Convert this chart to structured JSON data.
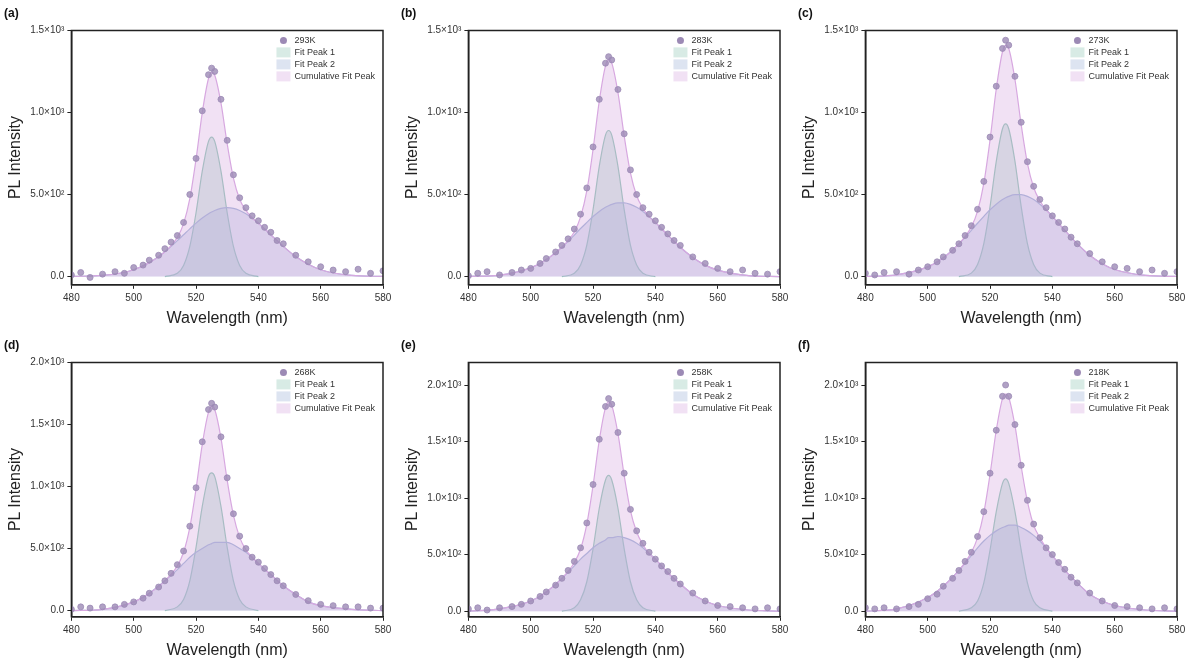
{
  "chart_data": [
    {
      "type": "area",
      "title": "(a)",
      "xlabel": "Wavelength (nm)",
      "ylabel": "PL Intensity",
      "xlim": [
        480,
        580
      ],
      "xticks": [
        480,
        500,
        520,
        540,
        560,
        580
      ],
      "ylim": [
        -50,
        1500
      ],
      "yticks": [
        {
          "value": 0,
          "label": "0.0"
        },
        {
          "value": 500,
          "label": "5.0×10²"
        },
        {
          "value": 1000,
          "label": "1.0×10³"
        },
        {
          "value": 1500,
          "label": "1.5×10³"
        }
      ],
      "legend": "top right",
      "series": [
        {
          "name": "293K",
          "type": "scatter",
          "marker": "circle",
          "color": "#9c8ab5",
          "x": [
            480,
            483,
            486,
            490,
            494,
            497,
            500,
            503,
            505,
            508,
            510,
            512,
            514,
            516,
            518,
            520,
            522,
            524,
            525,
            526,
            528,
            530,
            532,
            534,
            536,
            538,
            540,
            542,
            544,
            546,
            548,
            552,
            556,
            560,
            564,
            568,
            572,
            576,
            580
          ],
          "values": [
            10,
            25,
            -5,
            15,
            30,
            20,
            55,
            70,
            100,
            130,
            170,
            210,
            250,
            330,
            500,
            720,
            1010,
            1230,
            1270,
            1250,
            1080,
            830,
            620,
            480,
            420,
            370,
            340,
            300,
            270,
            220,
            200,
            130,
            90,
            60,
            40,
            30,
            45,
            20,
            35
          ]
        },
        {
          "name": "Fit Peak 1",
          "color": "#8fc7b4",
          "x": [
            510,
            514,
            516,
            518,
            520,
            522,
            524,
            525,
            526,
            528,
            530,
            532,
            534,
            536,
            540
          ],
          "values": [
            0,
            20,
            68,
            184,
            389,
            642,
            824,
            850,
            824,
            642,
            389,
            184,
            68,
            20,
            0
          ]
        },
        {
          "name": "Fit Peak 2",
          "color": "#9fb3d6",
          "x": [
            480,
            490,
            500,
            505,
            510,
            514,
            516,
            518,
            520,
            522,
            524,
            525,
            526,
            528,
            530,
            532,
            534,
            536,
            538,
            540,
            544,
            548,
            552,
            556,
            560,
            570,
            580
          ],
          "values": [
            1,
            7,
            42,
            85,
            151,
            219,
            255,
            291,
            326,
            357,
            383,
            394,
            403,
            416,
            420,
            416,
            403,
            383,
            357,
            326,
            255,
            184,
            122,
            75,
            42,
            7,
            1
          ]
        },
        {
          "name": "Cumulative Fit Peak",
          "color": "#d7a8e0",
          "x": [
            480,
            490,
            500,
            505,
            510,
            514,
            516,
            518,
            520,
            522,
            524,
            525,
            526,
            528,
            530,
            532,
            534,
            536,
            538,
            540,
            544,
            548,
            552,
            556,
            560,
            570,
            580
          ],
          "values": [
            1,
            7,
            42,
            85,
            151,
            239,
            323,
            475,
            715,
            999,
            1207,
            1244,
            1227,
            1058,
            809,
            600,
            471,
            403,
            357,
            326,
            255,
            184,
            122,
            75,
            42,
            7,
            1
          ]
        }
      ]
    },
    {
      "type": "area",
      "title": "(b)",
      "xlabel": "Wavelength (nm)",
      "ylabel": "PL Intensity",
      "xlim": [
        480,
        580
      ],
      "xticks": [
        480,
        500,
        520,
        540,
        560,
        580
      ],
      "ylim": [
        -50,
        1500
      ],
      "yticks": [
        {
          "value": 0,
          "label": "0.0"
        },
        {
          "value": 500,
          "label": "5.0×10²"
        },
        {
          "value": 1000,
          "label": "1.0×10³"
        },
        {
          "value": 1500,
          "label": "1.5×10³"
        }
      ],
      "legend": "top right",
      "series": [
        {
          "name": "283K",
          "type": "scatter",
          "marker": "circle",
          "color": "#9c8ab5",
          "x": [
            480,
            483,
            486,
            490,
            494,
            497,
            500,
            503,
            505,
            508,
            510,
            512,
            514,
            516,
            518,
            520,
            522,
            524,
            525,
            526,
            528,
            530,
            532,
            534,
            536,
            538,
            540,
            542,
            544,
            546,
            548,
            552,
            556,
            560,
            564,
            568,
            572,
            576,
            580
          ],
          "values": [
            5,
            20,
            30,
            10,
            25,
            40,
            50,
            80,
            110,
            150,
            190,
            230,
            290,
            380,
            540,
            790,
            1080,
            1300,
            1340,
            1320,
            1140,
            870,
            650,
            500,
            420,
            380,
            340,
            300,
            260,
            220,
            190,
            120,
            80,
            50,
            30,
            40,
            20,
            15,
            30
          ]
        },
        {
          "name": "Fit Peak 1",
          "color": "#8fc7b4",
          "x": [
            510,
            514,
            516,
            518,
            520,
            522,
            524,
            525,
            526,
            528,
            530,
            532,
            534,
            536,
            540
          ],
          "values": [
            0,
            20,
            71,
            192,
            408,
            672,
            862,
            890,
            862,
            672,
            408,
            192,
            71,
            20,
            0
          ]
        },
        {
          "name": "Fit Peak 2",
          "color": "#9fb3d6",
          "x": [
            480,
            490,
            500,
            505,
            510,
            514,
            516,
            518,
            520,
            522,
            524,
            525,
            526,
            528,
            530,
            532,
            534,
            536,
            538,
            540,
            544,
            548,
            552,
            556,
            560,
            570,
            580
          ],
          "values": [
            1,
            9,
            53,
            104,
            179,
            253,
            293,
            330,
            366,
            397,
            422,
            432,
            440,
            449,
            449,
            440,
            422,
            397,
            366,
            330,
            253,
            179,
            117,
            70,
            39,
            6,
            0
          ]
        },
        {
          "name": "Cumulative Fit Peak",
          "color": "#d7a8e0",
          "x": [
            480,
            490,
            500,
            505,
            510,
            514,
            516,
            518,
            520,
            522,
            524,
            525,
            526,
            528,
            530,
            532,
            534,
            536,
            538,
            540,
            544,
            548,
            552,
            556,
            560,
            570,
            580
          ],
          "values": [
            1,
            9,
            53,
            104,
            179,
            273,
            364,
            522,
            774,
            1069,
            1284,
            1322,
            1302,
            1121,
            857,
            632,
            493,
            417,
            366,
            330,
            253,
            179,
            117,
            70,
            39,
            6,
            0
          ]
        }
      ]
    },
    {
      "type": "area",
      "title": "(c)",
      "xlabel": "Wavelength (nm)",
      "ylabel": "PL Intensity",
      "xlim": [
        480,
        580
      ],
      "xticks": [
        480,
        500,
        520,
        540,
        560,
        580
      ],
      "ylim": [
        -50,
        1500
      ],
      "yticks": [
        {
          "value": 0,
          "label": "0.0"
        },
        {
          "value": 500,
          "label": "5.0×10²"
        },
        {
          "value": 1000,
          "label": "1.0×10³"
        },
        {
          "value": 1500,
          "label": "1.5×10³"
        }
      ],
      "legend": "top right",
      "series": [
        {
          "name": "273K",
          "type": "scatter",
          "marker": "circle",
          "color": "#9c8ab5",
          "x": [
            480,
            483,
            486,
            490,
            494,
            497,
            500,
            503,
            505,
            508,
            510,
            512,
            514,
            516,
            518,
            520,
            522,
            524,
            525,
            526,
            528,
            530,
            532,
            534,
            536,
            538,
            540,
            542,
            544,
            546,
            548,
            552,
            556,
            560,
            564,
            568,
            572,
            576,
            580
          ],
          "values": [
            20,
            10,
            25,
            30,
            15,
            40,
            60,
            90,
            120,
            160,
            200,
            250,
            310,
            410,
            580,
            850,
            1160,
            1390,
            1440,
            1410,
            1220,
            940,
            700,
            550,
            470,
            420,
            370,
            330,
            290,
            240,
            200,
            140,
            90,
            60,
            50,
            30,
            40,
            20,
            30
          ]
        },
        {
          "name": "Fit Peak 1",
          "color": "#8fc7b4",
          "x": [
            510,
            514,
            516,
            518,
            520,
            522,
            524,
            525,
            526,
            528,
            530,
            532,
            534,
            536,
            540
          ],
          "values": [
            0,
            21,
            74,
            201,
            426,
            702,
            901,
            930,
            901,
            702,
            426,
            201,
            74,
            21,
            0
          ]
        },
        {
          "name": "Fit Peak 2",
          "color": "#9fb3d6",
          "x": [
            480,
            490,
            500,
            505,
            510,
            514,
            516,
            518,
            520,
            522,
            524,
            525,
            526,
            528,
            530,
            532,
            534,
            536,
            538,
            540,
            544,
            548,
            552,
            556,
            560,
            570,
            580
          ],
          "values": [
            1,
            11,
            59,
            115,
            199,
            282,
            325,
            367,
            407,
            441,
            469,
            480,
            489,
            499,
            499,
            489,
            469,
            441,
            407,
            367,
            282,
            199,
            130,
            78,
            43,
            7,
            1
          ]
        },
        {
          "name": "Cumulative Fit Peak",
          "color": "#d7a8e0",
          "x": [
            480,
            490,
            500,
            505,
            510,
            514,
            516,
            518,
            520,
            522,
            524,
            525,
            526,
            528,
            530,
            532,
            534,
            536,
            538,
            540,
            544,
            548,
            552,
            556,
            560,
            570,
            580
          ],
          "values": [
            1,
            11,
            59,
            115,
            199,
            303,
            399,
            568,
            833,
            1143,
            1370,
            1410,
            1390,
            1201,
            925,
            690,
            543,
            462,
            407,
            367,
            282,
            199,
            130,
            78,
            43,
            7,
            1
          ]
        }
      ]
    },
    {
      "type": "area",
      "title": "(d)",
      "xlabel": "Wavelength (nm)",
      "ylabel": "PL Intensity",
      "xlim": [
        480,
        580
      ],
      "xticks": [
        480,
        500,
        520,
        540,
        560,
        580
      ],
      "ylim": [
        -50,
        2000
      ],
      "yticks": [
        {
          "value": 0,
          "label": "0.0"
        },
        {
          "value": 500,
          "label": "5.0×10²"
        },
        {
          "value": 1000,
          "label": "1.0×10³"
        },
        {
          "value": 1500,
          "label": "1.5×10³"
        },
        {
          "value": 2000,
          "label": "2.0×10³"
        }
      ],
      "legend": "top right",
      "series": [
        {
          "name": "268K",
          "type": "scatter",
          "marker": "circle",
          "color": "#9c8ab5",
          "x": [
            480,
            483,
            486,
            490,
            494,
            497,
            500,
            503,
            505,
            508,
            510,
            512,
            514,
            516,
            518,
            520,
            522,
            524,
            525,
            526,
            528,
            530,
            532,
            534,
            536,
            538,
            540,
            542,
            544,
            546,
            548,
            552,
            556,
            560,
            564,
            568,
            572,
            576,
            580
          ],
          "values": [
            10,
            30,
            20,
            30,
            30,
            50,
            70,
            100,
            140,
            190,
            240,
            300,
            370,
            480,
            680,
            990,
            1360,
            1620,
            1670,
            1640,
            1400,
            1070,
            780,
            600,
            500,
            430,
            390,
            340,
            290,
            240,
            200,
            130,
            80,
            50,
            40,
            30,
            30,
            20,
            20
          ]
        },
        {
          "name": "Fit Peak 1",
          "color": "#8fc7b4",
          "x": [
            510,
            514,
            516,
            518,
            520,
            522,
            524,
            525,
            526,
            528,
            530,
            532,
            534,
            536,
            540
          ],
          "values": [
            0,
            30,
            90,
            240,
            510,
            840,
            1080,
            1110,
            1080,
            840,
            510,
            240,
            90,
            30,
            0
          ]
        },
        {
          "name": "Fit Peak 2",
          "color": "#9fb3d6",
          "x": [
            480,
            490,
            500,
            505,
            510,
            514,
            516,
            518,
            520,
            522,
            524,
            525,
            526,
            528,
            530,
            532,
            534,
            536,
            538,
            540,
            544,
            548,
            552,
            556,
            560,
            570,
            580
          ],
          "values": [
            0,
            10,
            70,
            140,
            240,
            330,
            380,
            430,
            470,
            500,
            530,
            540,
            550,
            550,
            550,
            530,
            500,
            470,
            430,
            380,
            290,
            200,
            130,
            70,
            40,
            10,
            0
          ]
        },
        {
          "name": "Cumulative Fit Peak",
          "color": "#d7a8e0",
          "x": [
            480,
            490,
            500,
            505,
            510,
            514,
            516,
            518,
            520,
            522,
            524,
            525,
            526,
            528,
            530,
            532,
            534,
            536,
            538,
            540,
            544,
            548,
            552,
            556,
            560,
            570,
            580
          ],
          "values": [
            0,
            10,
            70,
            140,
            240,
            360,
            470,
            670,
            980,
            1340,
            1600,
            1650,
            1620,
            1390,
            1050,
            770,
            590,
            490,
            430,
            380,
            290,
            200,
            130,
            70,
            40,
            10,
            0
          ]
        }
      ]
    },
    {
      "type": "area",
      "title": "(e)",
      "xlabel": "Wavelength (nm)",
      "ylabel": "PL Intensity",
      "xlim": [
        480,
        580
      ],
      "xticks": [
        480,
        500,
        520,
        540,
        560,
        580
      ],
      "ylim": [
        -50,
        2200
      ],
      "yticks": [
        {
          "value": 0,
          "label": "0.0"
        },
        {
          "value": 500,
          "label": "5.0×10²"
        },
        {
          "value": 1000,
          "label": "1.0×10³"
        },
        {
          "value": 1500,
          "label": "1.5×10³"
        },
        {
          "value": 2000,
          "label": "2.0×10³"
        }
      ],
      "legend": "top right",
      "series": [
        {
          "name": "258K",
          "type": "scatter",
          "marker": "circle",
          "color": "#9c8ab5",
          "x": [
            480,
            483,
            486,
            490,
            494,
            497,
            500,
            503,
            505,
            508,
            510,
            512,
            514,
            516,
            518,
            520,
            522,
            524,
            525,
            526,
            528,
            530,
            532,
            534,
            536,
            538,
            540,
            542,
            544,
            546,
            548,
            552,
            556,
            560,
            564,
            568,
            572,
            576,
            580
          ],
          "values": [
            20,
            30,
            10,
            30,
            40,
            60,
            90,
            130,
            170,
            230,
            290,
            360,
            440,
            560,
            780,
            1120,
            1520,
            1810,
            1880,
            1830,
            1580,
            1220,
            900,
            710,
            600,
            520,
            460,
            400,
            350,
            290,
            240,
            160,
            90,
            50,
            40,
            30,
            20,
            30,
            20
          ]
        },
        {
          "name": "Fit Peak 1",
          "color": "#8fc7b4",
          "x": [
            510,
            514,
            516,
            518,
            520,
            522,
            524,
            525,
            526,
            528,
            530,
            532,
            534,
            536,
            540
          ],
          "values": [
            0,
            30,
            100,
            260,
            550,
            910,
            1160,
            1200,
            1160,
            910,
            550,
            260,
            100,
            30,
            0
          ]
        },
        {
          "name": "Fit Peak 2",
          "color": "#9fb3d6",
          "x": [
            480,
            490,
            500,
            505,
            510,
            514,
            516,
            518,
            520,
            522,
            524,
            525,
            526,
            528,
            530,
            532,
            534,
            536,
            538,
            540,
            544,
            548,
            552,
            556,
            560,
            570,
            580
          ],
          "values": [
            0,
            20,
            90,
            170,
            290,
            400,
            460,
            510,
            560,
            600,
            630,
            650,
            650,
            660,
            650,
            630,
            600,
            560,
            510,
            460,
            340,
            240,
            150,
            90,
            50,
            10,
            0
          ]
        },
        {
          "name": "Cumulative Fit Peak",
          "color": "#d7a8e0",
          "x": [
            480,
            490,
            500,
            505,
            510,
            514,
            516,
            518,
            520,
            522,
            524,
            525,
            526,
            528,
            530,
            532,
            534,
            536,
            538,
            540,
            544,
            548,
            552,
            556,
            560,
            570,
            580
          ],
          "values": [
            0,
            20,
            90,
            170,
            290,
            430,
            550,
            770,
            1110,
            1510,
            1800,
            1850,
            1820,
            1570,
            1200,
            890,
            700,
            590,
            510,
            460,
            340,
            240,
            150,
            90,
            50,
            10,
            0
          ]
        }
      ]
    },
    {
      "type": "area",
      "title": "(f)",
      "xlabel": "Wavelength (nm)",
      "ylabel": "PL Intensity",
      "xlim": [
        480,
        580
      ],
      "xticks": [
        480,
        500,
        520,
        540,
        560,
        580
      ],
      "ylim": [
        -50,
        2200
      ],
      "yticks": [
        {
          "value": 0,
          "label": "0.0"
        },
        {
          "value": 500,
          "label": "5.0×10²"
        },
        {
          "value": 1000,
          "label": "1.0×10³"
        },
        {
          "value": 1500,
          "label": "1.5×10³"
        },
        {
          "value": 2000,
          "label": "2.0×10³"
        }
      ],
      "legend": "top right",
      "series": [
        {
          "name": "218K",
          "type": "scatter",
          "marker": "circle",
          "color": "#9c8ab5",
          "x": [
            480,
            483,
            486,
            490,
            494,
            497,
            500,
            503,
            505,
            508,
            510,
            512,
            514,
            516,
            518,
            520,
            522,
            524,
            525,
            526,
            528,
            530,
            532,
            534,
            536,
            538,
            540,
            542,
            544,
            546,
            548,
            552,
            556,
            560,
            564,
            568,
            572,
            576,
            580
          ],
          "values": [
            30,
            20,
            30,
            20,
            40,
            60,
            110,
            150,
            220,
            290,
            360,
            440,
            520,
            660,
            880,
            1220,
            1600,
            1900,
            2000,
            1900,
            1650,
            1290,
            980,
            770,
            650,
            560,
            500,
            430,
            370,
            300,
            250,
            160,
            90,
            50,
            40,
            30,
            20,
            30,
            20
          ]
        },
        {
          "name": "Fit Peak 1",
          "color": "#8fc7b4",
          "x": [
            510,
            514,
            516,
            518,
            520,
            522,
            524,
            525,
            526,
            528,
            530,
            532,
            534,
            536,
            540
          ],
          "values": [
            0,
            30,
            90,
            250,
            540,
            880,
            1130,
            1170,
            1130,
            880,
            540,
            250,
            90,
            30,
            0
          ]
        },
        {
          "name": "Fit Peak 2",
          "color": "#9fb3d6",
          "x": [
            480,
            490,
            500,
            505,
            510,
            514,
            516,
            518,
            520,
            522,
            524,
            525,
            526,
            528,
            530,
            532,
            534,
            536,
            538,
            540,
            544,
            548,
            552,
            556,
            560,
            570,
            580
          ],
          "values": [
            0,
            20,
            120,
            220,
            360,
            490,
            560,
            620,
            670,
            710,
            740,
            750,
            760,
            760,
            740,
            710,
            670,
            620,
            560,
            490,
            360,
            250,
            150,
            90,
            50,
            10,
            0
          ]
        },
        {
          "name": "Cumulative Fit Peak",
          "color": "#d7a8e0",
          "x": [
            480,
            490,
            500,
            505,
            510,
            514,
            516,
            518,
            520,
            522,
            524,
            525,
            526,
            528,
            530,
            532,
            534,
            536,
            538,
            540,
            544,
            548,
            552,
            556,
            560,
            570,
            580
          ],
          "values": [
            0,
            20,
            120,
            220,
            360,
            520,
            650,
            870,
            1210,
            1600,
            1880,
            1920,
            1890,
            1640,
            1280,
            970,
            760,
            650,
            560,
            490,
            360,
            250,
            150,
            90,
            50,
            10,
            0
          ]
        }
      ]
    }
  ]
}
